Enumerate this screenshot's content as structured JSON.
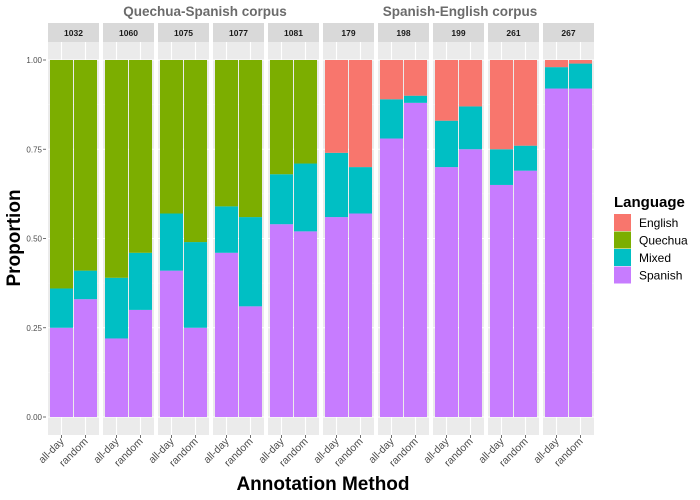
{
  "chart_data": {
    "type": "bar",
    "stacked": true,
    "xlabel": "Annotation Method",
    "ylabel": "Proportion",
    "ylim": [
      0,
      1
    ],
    "yticks": [
      "0.00",
      "0.25",
      "0.50",
      "0.75",
      "1.00"
    ],
    "groups": [
      "Quechua-Spanish corpus",
      "Spanish-English corpus"
    ],
    "categories": [
      "all-day",
      "random"
    ],
    "legend": {
      "title": "Language",
      "position": "right",
      "entries": [
        {
          "name": "English",
          "color": "#F8766D"
        },
        {
          "name": "Quechua",
          "color": "#7CAE00"
        },
        {
          "name": "Mixed",
          "color": "#00BFC4"
        },
        {
          "name": "Spanish",
          "color": "#C77CFF"
        }
      ]
    },
    "stack_order": [
      "Spanish",
      "Mixed",
      "Quechua",
      "English"
    ],
    "panels": [
      {
        "id": "1032",
        "group": 0,
        "bars": [
          {
            "method": "all-day",
            "Spanish": 0.25,
            "Mixed": 0.11,
            "Quechua": 0.64,
            "English": 0
          },
          {
            "method": "random",
            "Spanish": 0.33,
            "Mixed": 0.08,
            "Quechua": 0.59,
            "English": 0
          }
        ]
      },
      {
        "id": "1060",
        "group": 0,
        "bars": [
          {
            "method": "all-day",
            "Spanish": 0.22,
            "Mixed": 0.17,
            "Quechua": 0.61,
            "English": 0
          },
          {
            "method": "random",
            "Spanish": 0.3,
            "Mixed": 0.16,
            "Quechua": 0.54,
            "English": 0
          }
        ]
      },
      {
        "id": "1075",
        "group": 0,
        "bars": [
          {
            "method": "all-day",
            "Spanish": 0.41,
            "Mixed": 0.16,
            "Quechua": 0.43,
            "English": 0
          },
          {
            "method": "random",
            "Spanish": 0.25,
            "Mixed": 0.24,
            "Quechua": 0.51,
            "English": 0
          }
        ]
      },
      {
        "id": "1077",
        "group": 0,
        "bars": [
          {
            "method": "all-day",
            "Spanish": 0.46,
            "Mixed": 0.13,
            "Quechua": 0.41,
            "English": 0
          },
          {
            "method": "random",
            "Spanish": 0.31,
            "Mixed": 0.25,
            "Quechua": 0.44,
            "English": 0
          }
        ]
      },
      {
        "id": "1081",
        "group": 0,
        "bars": [
          {
            "method": "all-day",
            "Spanish": 0.54,
            "Mixed": 0.14,
            "Quechua": 0.32,
            "English": 0
          },
          {
            "method": "random",
            "Spanish": 0.52,
            "Mixed": 0.19,
            "Quechua": 0.29,
            "English": 0
          }
        ]
      },
      {
        "id": "179",
        "group": 1,
        "bars": [
          {
            "method": "all-day",
            "Spanish": 0.56,
            "Mixed": 0.18,
            "Quechua": 0,
            "English": 0.26
          },
          {
            "method": "random",
            "Spanish": 0.57,
            "Mixed": 0.13,
            "Quechua": 0,
            "English": 0.3
          }
        ]
      },
      {
        "id": "198",
        "group": 1,
        "bars": [
          {
            "method": "all-day",
            "Spanish": 0.78,
            "Mixed": 0.11,
            "Quechua": 0,
            "English": 0.11
          },
          {
            "method": "random",
            "Spanish": 0.88,
            "Mixed": 0.02,
            "Quechua": 0,
            "English": 0.1
          }
        ]
      },
      {
        "id": "199",
        "group": 1,
        "bars": [
          {
            "method": "all-day",
            "Spanish": 0.7,
            "Mixed": 0.13,
            "Quechua": 0,
            "English": 0.17
          },
          {
            "method": "random",
            "Spanish": 0.75,
            "Mixed": 0.12,
            "Quechua": 0,
            "English": 0.13
          }
        ]
      },
      {
        "id": "261",
        "group": 1,
        "bars": [
          {
            "method": "all-day",
            "Spanish": 0.65,
            "Mixed": 0.1,
            "Quechua": 0,
            "English": 0.25
          },
          {
            "method": "random",
            "Spanish": 0.69,
            "Mixed": 0.07,
            "Quechua": 0,
            "English": 0.24
          }
        ]
      },
      {
        "id": "267",
        "group": 1,
        "bars": [
          {
            "method": "all-day",
            "Spanish": 0.92,
            "Mixed": 0.06,
            "Quechua": 0,
            "English": 0.02
          },
          {
            "method": "random",
            "Spanish": 0.92,
            "Mixed": 0.07,
            "Quechua": 0,
            "English": 0.01
          }
        ]
      }
    ]
  }
}
